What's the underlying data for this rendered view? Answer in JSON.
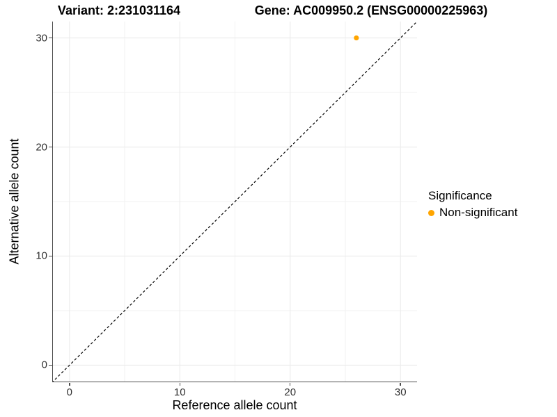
{
  "chart_data": {
    "type": "scatter",
    "title_left": "Variant: 2:231031164",
    "title_right": "Gene: AC009950.2 (ENSG00000225963)",
    "xlabel": "Reference allele count",
    "ylabel": "Alternative allele count",
    "xlim": [
      -1.5,
      31.5
    ],
    "ylim": [
      -1.5,
      31.5
    ],
    "xticks": [
      0,
      10,
      20,
      30
    ],
    "yticks": [
      0,
      10,
      20,
      30
    ],
    "minor_xticks": [
      5,
      15,
      25
    ],
    "minor_yticks": [
      5,
      15,
      25
    ],
    "grid": "major+minor",
    "reference_line": {
      "type": "identity",
      "slope": 1,
      "intercept": 0,
      "style": "dashed",
      "color": "#000000"
    },
    "series": [
      {
        "name": "Non-significant",
        "color": "#FFA500",
        "points": [
          {
            "x": 26,
            "y": 30
          }
        ]
      }
    ],
    "legend": {
      "title": "Significance",
      "position": "right",
      "entries": [
        {
          "label": "Non-significant",
          "color": "#FFA500"
        }
      ]
    },
    "colors": {
      "background": "#FFFFFF",
      "grid_major": "#EBEBEB",
      "grid_minor": "#F2F2F2",
      "axis_line": "#4D4D4D",
      "tick_label": "#303030"
    }
  }
}
